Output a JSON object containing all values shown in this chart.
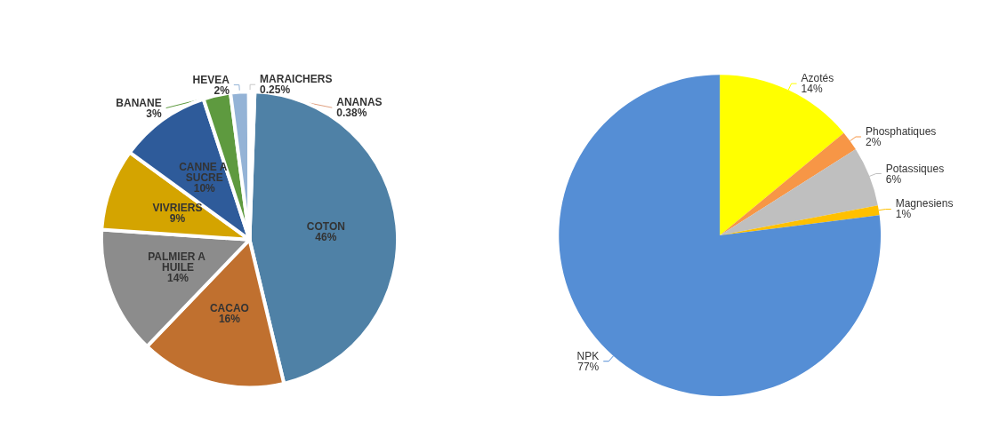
{
  "chart_data": [
    {
      "type": "pie",
      "categories": [
        "COTON",
        "CACAO",
        "PALMIER A HUILE",
        "VIVRIERS",
        "CANNE A SUCRE",
        "BANANE",
        "HEVEA",
        "MARAICHERS",
        "ANANAS"
      ],
      "values": [
        46,
        16,
        14,
        9,
        10,
        3,
        2,
        0.25,
        0.38
      ],
      "value_labels": [
        "46%",
        "16%",
        "14%",
        "9%",
        "10%",
        "3%",
        "2%",
        "0.25%",
        "0.38%"
      ],
      "colors": [
        "#4f81a6",
        "#c0702f",
        "#8c8c8c",
        "#d4a400",
        "#2e5b9a",
        "#5e9a3f",
        "#94b3d6",
        "#c9c9c9",
        "#e0a080"
      ],
      "legend": false
    },
    {
      "type": "pie",
      "categories": [
        "Azotés",
        "Phosphatiques",
        "Potassiques",
        "Magnesiens",
        "NPK"
      ],
      "values": [
        14,
        2,
        6,
        1,
        77
      ],
      "value_labels": [
        "14%",
        "2%",
        "6%",
        "1%",
        "77%"
      ],
      "colors": [
        "#ffff00",
        "#f79646",
        "#bfbfbf",
        "#ffc000",
        "#558ed5"
      ],
      "legend": false
    }
  ]
}
